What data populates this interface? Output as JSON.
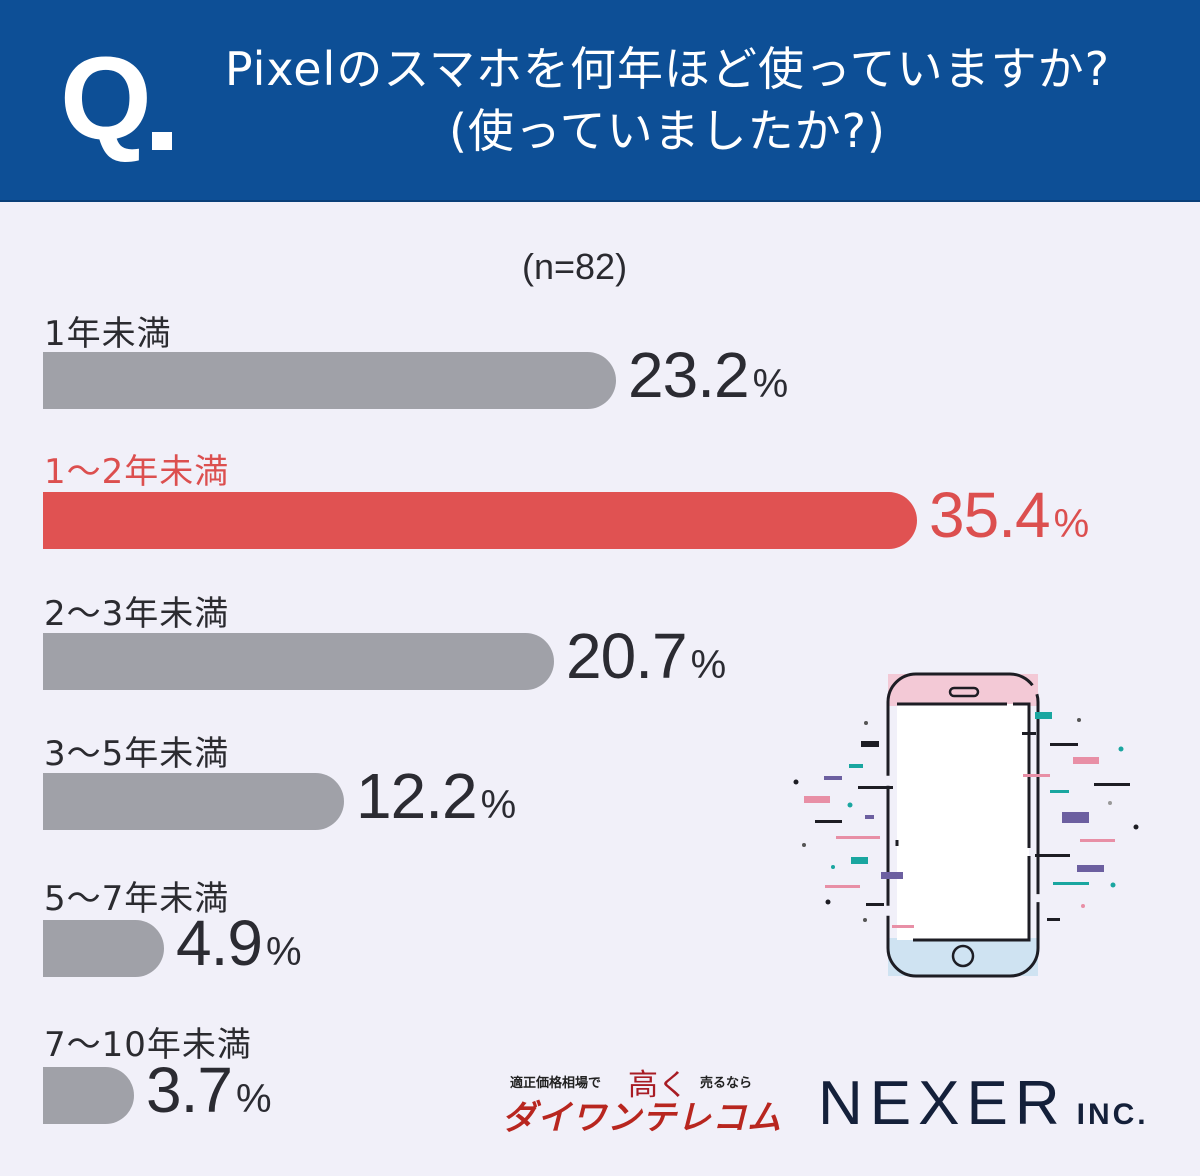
{
  "header": {
    "q_mark": "Q",
    "title_line1": "Pixelのスマホを何年ほど使っていますか?",
    "title_line2": "(使っていましたか?)"
  },
  "sample_size": "(n=82)",
  "percent_sign": "%",
  "colors": {
    "header_bg": "#0d4f96",
    "background": "#f1f0f9",
    "bar_default": "#a0a1a8",
    "bar_highlight": "#e05252",
    "text_dark": "#2b2b32",
    "text_highlight": "#dc4f4f"
  },
  "chart_data": {
    "type": "bar",
    "orientation": "horizontal",
    "title": "Pixelのスマホを何年ほど使っていますか?(使っていましたか?)",
    "subtitle": "(n=82)",
    "categories": [
      "1年未満",
      "1〜2年未満",
      "2〜3年未満",
      "3〜5年未満",
      "5〜7年未満",
      "7〜10年未満"
    ],
    "values": [
      23.2,
      35.4,
      20.7,
      12.2,
      4.9,
      3.7
    ],
    "value_labels": [
      "23.2",
      "35.4",
      "20.7",
      "12.2",
      "4.9",
      "3.7"
    ],
    "unit": "%",
    "highlight_index": 1,
    "xlabel": "",
    "ylabel": "",
    "grid": false,
    "legend": "none"
  },
  "sponsor": {
    "tagline_pre": "適正価格相場で",
    "tagline_em": "高く",
    "tagline_post": "売るなら",
    "brand": "ダイワンテレコム"
  },
  "company": {
    "name": "NEXER",
    "suffix": "INC."
  }
}
